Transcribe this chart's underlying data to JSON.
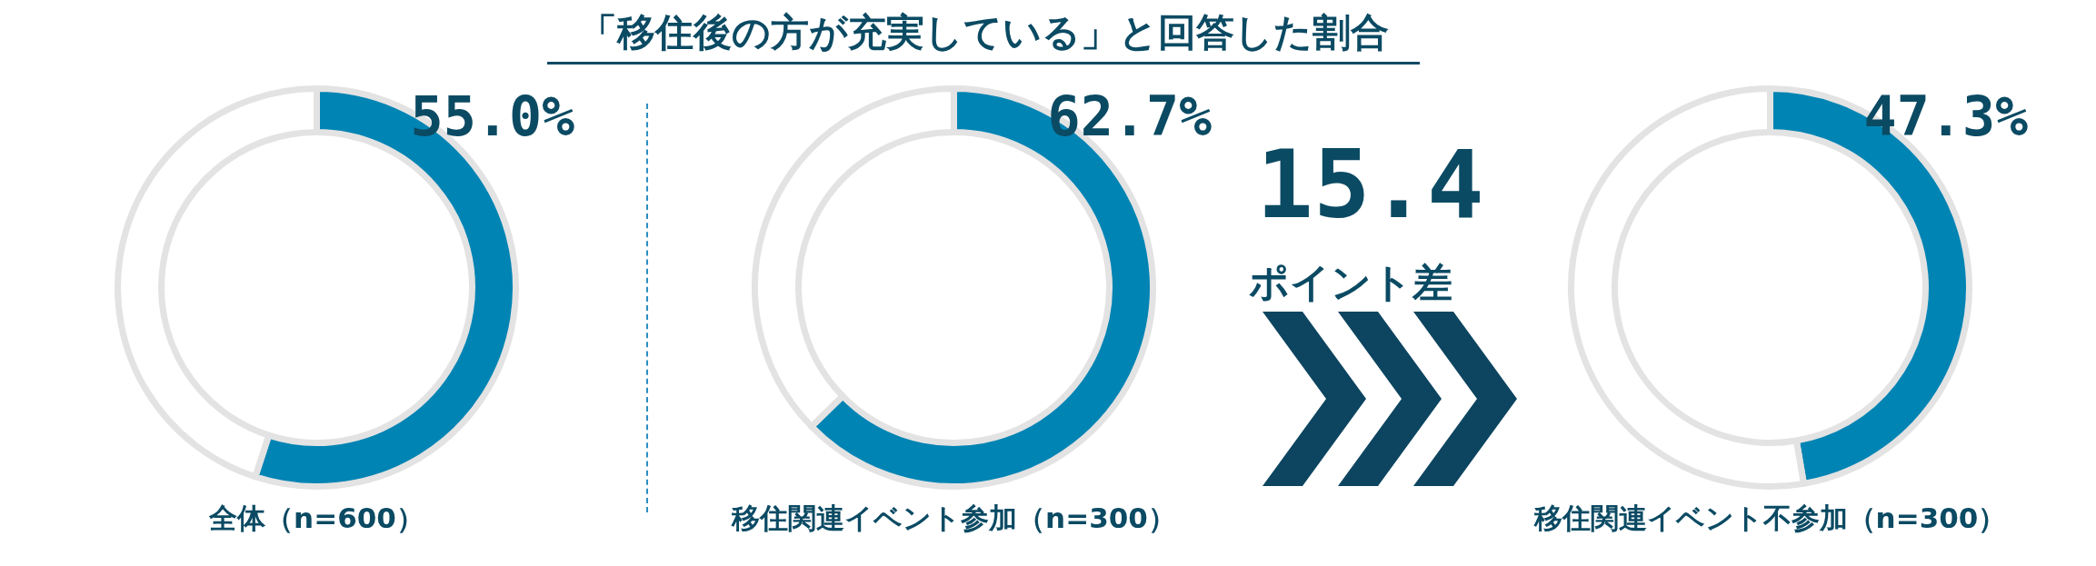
{
  "chart_data": [
    {
      "type": "other",
      "title": "「移住後の方が充実している」と回答した割合"
    },
    {
      "type": "donut",
      "title": "全体（n=600）",
      "categories": [
        null,
        null
      ],
      "values": [
        55.0,
        45.0
      ],
      "colors": [
        "#0084b4",
        "#ffffff"
      ],
      "value_labels": [
        "55.0%",
        null
      ]
    },
    {
      "type": "donut",
      "title": "移住関連イベント参加（n=300）",
      "categories": [
        null,
        null
      ],
      "values": [
        62.7,
        37.3
      ],
      "colors": [
        "#0084b4",
        "#ffffff"
      ],
      "value_labels": [
        "62.7%",
        null
      ]
    },
    {
      "type": "other",
      "annotations": [
        "15.4",
        "ポイント差"
      ]
    },
    {
      "type": "donut",
      "title": "移住関連イベント不参加（n=300）",
      "categories": [
        null,
        null
      ],
      "values": [
        47.3,
        52.7
      ],
      "colors": [
        "#0084b4",
        "#ffffff"
      ],
      "value_labels": [
        "47.3%",
        null
      ]
    }
  ]
}
